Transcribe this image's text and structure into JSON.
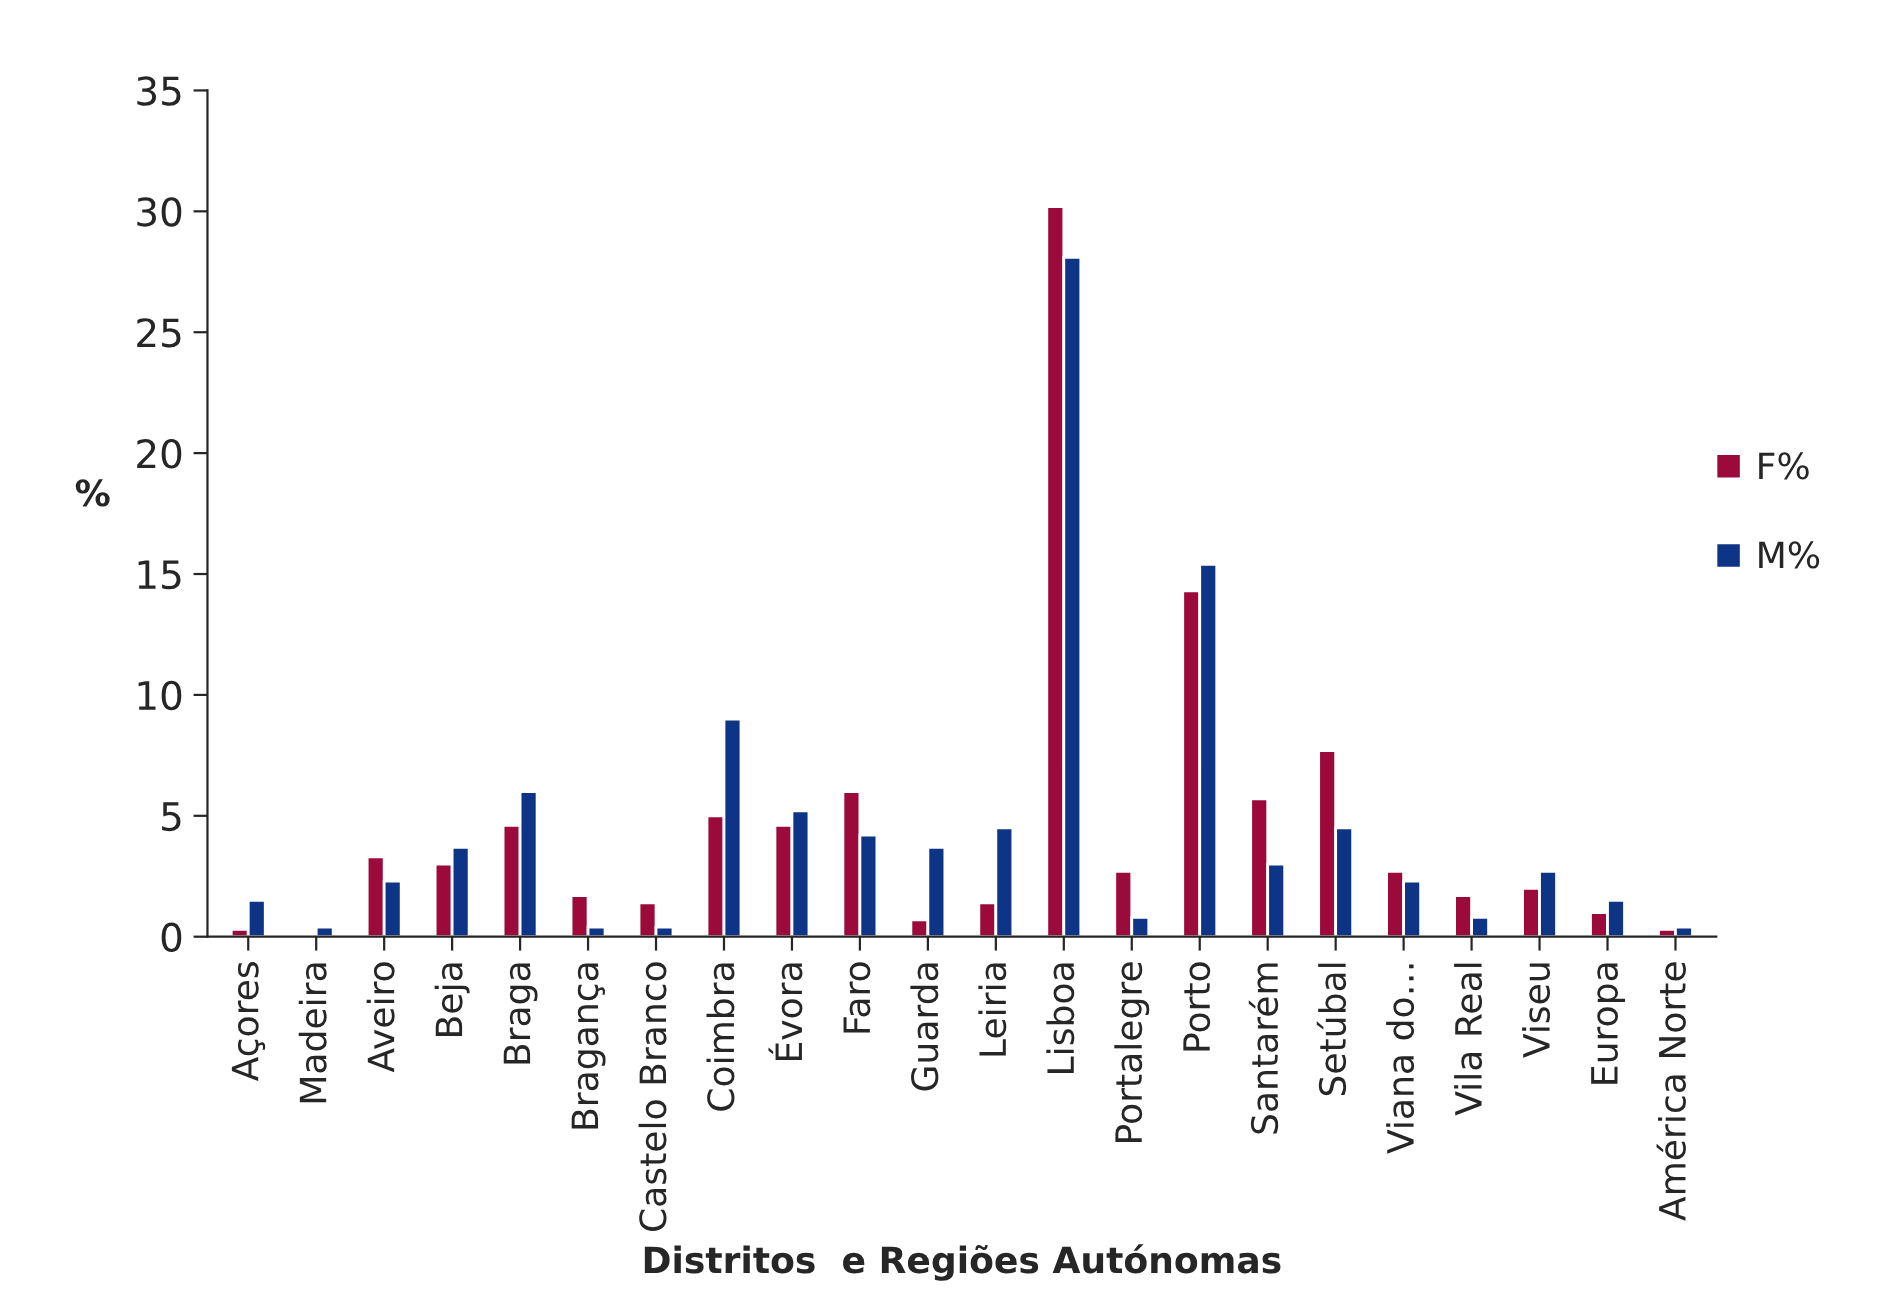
{
  "chart_data": {
    "type": "bar",
    "xlabel": "Distritos  e Regiões Autónomas",
    "ylabel": "%",
    "categories": [
      "Açores",
      "Madeira",
      "Aveiro",
      "Beja",
      "Braga",
      "Bragança",
      "Castelo Branco",
      "Coimbra",
      "Évora",
      "Faro",
      "Guarda",
      "Leiria",
      "Lisboa",
      "Portalegre",
      "Porto",
      "Santarém",
      "Setúbal",
      "Viana do…",
      "Vila Real",
      "Viseu",
      "Europa",
      "América Norte"
    ],
    "series": [
      {
        "name": "F%",
        "color": "#9b0a3a",
        "values": [
          0.3,
          0.1,
          3.3,
          3.0,
          4.6,
          1.7,
          1.4,
          5.0,
          4.6,
          6.0,
          0.7,
          1.4,
          30.2,
          2.7,
          14.3,
          5.7,
          7.7,
          2.7,
          1.7,
          2.0,
          1.0,
          0.3
        ]
      },
      {
        "name": "M%",
        "color": "#0e3585",
        "values": [
          1.5,
          0.4,
          2.3,
          3.7,
          6.0,
          0.4,
          0.4,
          9.0,
          5.2,
          4.2,
          3.7,
          4.5,
          28.1,
          0.8,
          15.4,
          3.0,
          4.5,
          2.3,
          0.8,
          2.7,
          1.5,
          0.4
        ]
      }
    ],
    "ylim": [
      0,
      35
    ],
    "yticks": [
      0,
      5,
      10,
      15,
      20,
      25,
      30,
      35
    ],
    "grid": false,
    "legend": "right"
  }
}
